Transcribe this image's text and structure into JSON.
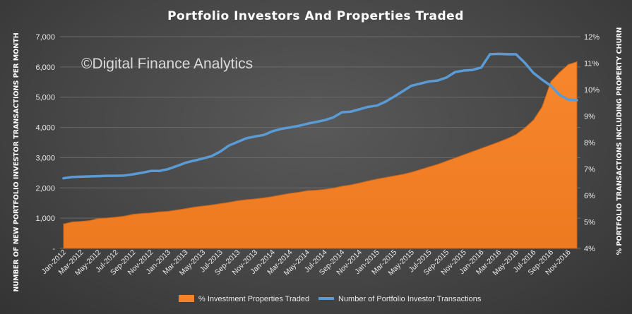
{
  "chart_data": {
    "type": "area",
    "title": "Portfolio Investors And Properties Traded",
    "watermark": "©Digital Finance Analytics",
    "ylabel_left": "NUMBER OF NEW PORTFOLIO INVESTOR TRANSACTIONS PER MONTH",
    "ylabel_right": "% PORTFOLIO TRANSACTIONS INCLUDING PROPERTY CHURN",
    "ylim_left": [
      0,
      7000
    ],
    "ylim_right": [
      4,
      12
    ],
    "yticks_left": [
      "-",
      "1,000",
      "2,000",
      "3,000",
      "4,000",
      "5,000",
      "6,000",
      "7,000"
    ],
    "yticks_right": [
      "4%",
      "5%",
      "6%",
      "7%",
      "8%",
      "9%",
      "10%",
      "11%",
      "12%"
    ],
    "x_tick_labels": [
      "Jan-2012",
      "Mar-2012",
      "May-2012",
      "Jul-2012",
      "Sep-2012",
      "Nov-2012",
      "Jan-2013",
      "Mar-2013",
      "May-2013",
      "Jul-2013",
      "Sep-2013",
      "Nov-2013",
      "Jan-2014",
      "Mar-2014",
      "May-2014",
      "Jul-2014",
      "Sep-2014",
      "Nov-2014",
      "Jan-2015",
      "Mar-2015",
      "May-2015",
      "Jul-2015",
      "Sep-2015",
      "Nov-2015",
      "Jan-2016",
      "Mar-2016",
      "May-2016",
      "Jul-2016",
      "Sep-2016",
      "Nov-2016"
    ],
    "x": [
      "Jan-2012",
      "Feb-2012",
      "Mar-2012",
      "Apr-2012",
      "May-2012",
      "Jun-2012",
      "Jul-2012",
      "Aug-2012",
      "Sep-2012",
      "Oct-2012",
      "Nov-2012",
      "Dec-2012",
      "Jan-2013",
      "Feb-2013",
      "Mar-2013",
      "Apr-2013",
      "May-2013",
      "Jun-2013",
      "Jul-2013",
      "Aug-2013",
      "Sep-2013",
      "Oct-2013",
      "Nov-2013",
      "Dec-2013",
      "Jan-2014",
      "Feb-2014",
      "Mar-2014",
      "Apr-2014",
      "May-2014",
      "Jun-2014",
      "Jul-2014",
      "Aug-2014",
      "Sep-2014",
      "Oct-2014",
      "Nov-2014",
      "Dec-2014",
      "Jan-2015",
      "Feb-2015",
      "Mar-2015",
      "Apr-2015",
      "May-2015",
      "Jun-2015",
      "Jul-2015",
      "Aug-2015",
      "Sep-2015",
      "Oct-2015",
      "Nov-2015",
      "Dec-2015",
      "Jan-2016",
      "Feb-2016",
      "Mar-2016",
      "Apr-2016",
      "May-2016",
      "Jun-2016",
      "Jul-2016",
      "Aug-2016",
      "Sep-2016",
      "Oct-2016",
      "Nov-2016",
      "Dec-2016"
    ],
    "series": [
      {
        "name": "% Investment Properties Traded",
        "axis": "right",
        "type": "area",
        "color": "#f5822a",
        "values": [
          4.92,
          5.0,
          5.02,
          5.05,
          5.13,
          5.15,
          5.18,
          5.22,
          5.29,
          5.32,
          5.34,
          5.38,
          5.4,
          5.45,
          5.5,
          5.56,
          5.6,
          5.64,
          5.69,
          5.74,
          5.8,
          5.84,
          5.87,
          5.91,
          5.96,
          6.02,
          6.08,
          6.12,
          6.18,
          6.2,
          6.23,
          6.28,
          6.35,
          6.4,
          6.47,
          6.55,
          6.62,
          6.68,
          6.74,
          6.8,
          6.88,
          6.98,
          7.08,
          7.18,
          7.3,
          7.42,
          7.54,
          7.66,
          7.78,
          7.9,
          8.02,
          8.15,
          8.3,
          8.55,
          8.85,
          9.35,
          10.3,
          10.65,
          10.95,
          11.05
        ]
      },
      {
        "name": "Number of Portfolio Investor Transactions",
        "axis": "left",
        "type": "line",
        "color": "#5b9bd5",
        "values": [
          2320,
          2360,
          2370,
          2380,
          2390,
          2400,
          2400,
          2410,
          2450,
          2500,
          2560,
          2560,
          2620,
          2720,
          2830,
          2900,
          2970,
          3050,
          3200,
          3400,
          3520,
          3640,
          3700,
          3750,
          3870,
          3950,
          4000,
          4050,
          4120,
          4180,
          4240,
          4330,
          4500,
          4520,
          4600,
          4680,
          4720,
          4850,
          5020,
          5200,
          5380,
          5450,
          5520,
          5550,
          5650,
          5830,
          5880,
          5900,
          5980,
          6420,
          6430,
          6420,
          6420,
          6140,
          5800,
          5580,
          5380,
          5080,
          4920,
          4900
        ]
      }
    ],
    "legend_position": "bottom",
    "grid": true
  }
}
